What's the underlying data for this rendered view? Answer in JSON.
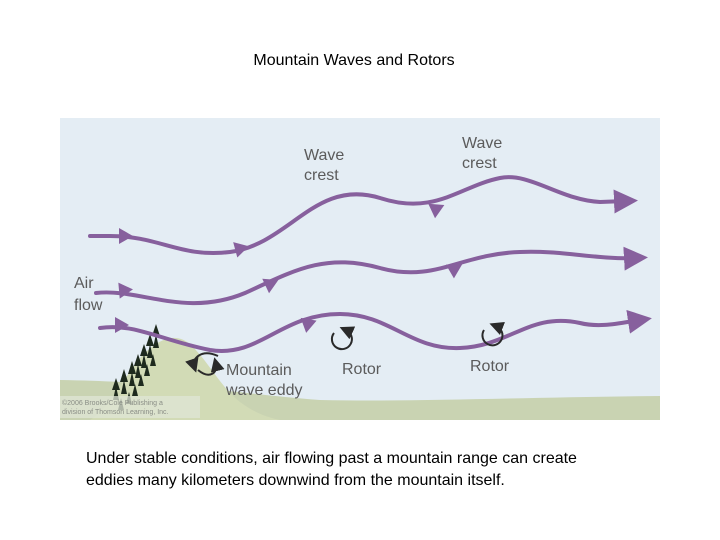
{
  "slide": {
    "title": "Mountain Waves and Rotors",
    "caption_lines": [
      "Under stable conditions, air flowing past a mountain range can create",
      "eddies many kilometers downwind from the mountain itself."
    ]
  },
  "diagram": {
    "labels": {
      "wave_crest_left": [
        "Wave",
        "crest"
      ],
      "wave_crest_right": [
        "Wave",
        "crest"
      ],
      "air_flow": [
        "Air",
        "flow"
      ],
      "mountain_wave_eddy": [
        "Mountain",
        "wave eddy"
      ],
      "rotor_left": "Rotor",
      "rotor_right": "Rotor"
    },
    "credit_lines": [
      "©2006 Brooks/Cole Publishing a",
      "division of Thomson Learning, Inc."
    ],
    "colors": {
      "sky": "#e4edf4",
      "ground": "#c9d3b2",
      "mountain": "#d2dbb6",
      "flow_arrow": "#87609d",
      "rotor_arrow": "#2a2a2a",
      "trees": "#1e2a1e",
      "label_text": "#5b5b5b"
    }
  }
}
